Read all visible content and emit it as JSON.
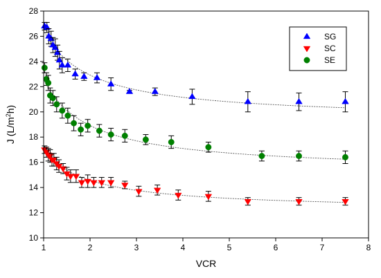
{
  "chart_data": {
    "type": "scatter",
    "xlabel": "VCR",
    "ylabel_parts": [
      "J (L/m",
      "2",
      "h)"
    ],
    "xlim": [
      1,
      8
    ],
    "ylim": [
      10,
      28
    ],
    "x_ticks": [
      1,
      2,
      3,
      4,
      5,
      6,
      7,
      8
    ],
    "y_ticks": [
      10,
      12,
      14,
      16,
      18,
      20,
      22,
      24,
      26,
      28
    ],
    "legend_position": "top-right",
    "grid": false,
    "series": [
      {
        "name": "SG",
        "marker": "triangle-up",
        "color": "#0000ff",
        "fit_curve": true,
        "points": [
          {
            "x": 1.02,
            "y": 26.8,
            "err": 0.3
          },
          {
            "x": 1.07,
            "y": 26.7,
            "err": 0.4
          },
          {
            "x": 1.11,
            "y": 26.0,
            "err": 0.6
          },
          {
            "x": 1.16,
            "y": 25.8,
            "err": 0.6
          },
          {
            "x": 1.2,
            "y": 25.3,
            "err": 0.6
          },
          {
            "x": 1.25,
            "y": 25.1,
            "err": 0.7
          },
          {
            "x": 1.3,
            "y": 24.7,
            "err": 0.6
          },
          {
            "x": 1.34,
            "y": 24.1,
            "err": 0.7
          },
          {
            "x": 1.4,
            "y": 23.7,
            "err": 0.6
          },
          {
            "x": 1.52,
            "y": 23.7,
            "err": 0.5
          },
          {
            "x": 1.68,
            "y": 23.0,
            "err": 0.4
          },
          {
            "x": 1.87,
            "y": 22.8,
            "err": 0.3
          },
          {
            "x": 2.15,
            "y": 22.7,
            "err": 0.4
          },
          {
            "x": 2.45,
            "y": 22.2,
            "err": 0.5
          },
          {
            "x": 2.85,
            "y": 21.6,
            "err": 0.1
          },
          {
            "x": 3.4,
            "y": 21.6,
            "err": 0.3
          },
          {
            "x": 4.2,
            "y": 21.2,
            "err": 0.6
          },
          {
            "x": 5.4,
            "y": 20.8,
            "err": 0.8
          },
          {
            "x": 6.5,
            "y": 20.8,
            "err": 0.7
          },
          {
            "x": 7.5,
            "y": 20.8,
            "err": 0.8
          }
        ]
      },
      {
        "name": "SC",
        "marker": "triangle-down",
        "color": "#ff0000",
        "fit_curve": true,
        "points": [
          {
            "x": 1.02,
            "y": 17.0,
            "err": 0.3
          },
          {
            "x": 1.06,
            "y": 16.8,
            "err": 0.4
          },
          {
            "x": 1.1,
            "y": 16.6,
            "err": 0.5
          },
          {
            "x": 1.14,
            "y": 16.5,
            "err": 0.5
          },
          {
            "x": 1.18,
            "y": 16.2,
            "err": 0.5
          },
          {
            "x": 1.22,
            "y": 16.2,
            "err": 0.5
          },
          {
            "x": 1.28,
            "y": 15.9,
            "err": 0.5
          },
          {
            "x": 1.33,
            "y": 15.7,
            "err": 0.5
          },
          {
            "x": 1.42,
            "y": 15.5,
            "err": 0.4
          },
          {
            "x": 1.5,
            "y": 15.1,
            "err": 0.5
          },
          {
            "x": 1.58,
            "y": 14.9,
            "err": 0.5
          },
          {
            "x": 1.7,
            "y": 14.9,
            "err": 0.5
          },
          {
            "x": 1.82,
            "y": 14.4,
            "err": 0.4
          },
          {
            "x": 1.95,
            "y": 14.5,
            "err": 0.5
          },
          {
            "x": 2.08,
            "y": 14.4,
            "err": 0.4
          },
          {
            "x": 2.25,
            "y": 14.4,
            "err": 0.4
          },
          {
            "x": 2.45,
            "y": 14.4,
            "err": 0.4
          },
          {
            "x": 2.75,
            "y": 14.2,
            "err": 0.3
          },
          {
            "x": 3.05,
            "y": 13.7,
            "err": 0.4
          },
          {
            "x": 3.45,
            "y": 13.8,
            "err": 0.4
          },
          {
            "x": 3.9,
            "y": 13.4,
            "err": 0.4
          },
          {
            "x": 4.55,
            "y": 13.3,
            "err": 0.4
          },
          {
            "x": 5.4,
            "y": 12.9,
            "err": 0.3
          },
          {
            "x": 6.5,
            "y": 12.9,
            "err": 0.3
          },
          {
            "x": 7.5,
            "y": 12.9,
            "err": 0.3
          }
        ]
      },
      {
        "name": "SE",
        "marker": "circle",
        "color": "#008000",
        "fit_curve": true,
        "points": [
          {
            "x": 1.02,
            "y": 23.5,
            "err": 0.4
          },
          {
            "x": 1.06,
            "y": 22.6,
            "err": 0.5
          },
          {
            "x": 1.1,
            "y": 22.3,
            "err": 0.6
          },
          {
            "x": 1.14,
            "y": 21.3,
            "err": 0.6
          },
          {
            "x": 1.2,
            "y": 21.1,
            "err": 0.6
          },
          {
            "x": 1.28,
            "y": 20.6,
            "err": 0.6
          },
          {
            "x": 1.4,
            "y": 20.1,
            "err": 0.6
          },
          {
            "x": 1.52,
            "y": 19.7,
            "err": 0.6
          },
          {
            "x": 1.65,
            "y": 19.1,
            "err": 0.6
          },
          {
            "x": 1.8,
            "y": 18.6,
            "err": 0.5
          },
          {
            "x": 1.95,
            "y": 18.9,
            "err": 0.5
          },
          {
            "x": 2.2,
            "y": 18.5,
            "err": 0.5
          },
          {
            "x": 2.45,
            "y": 18.2,
            "err": 0.5
          },
          {
            "x": 2.75,
            "y": 18.1,
            "err": 0.5
          },
          {
            "x": 3.2,
            "y": 17.8,
            "err": 0.4
          },
          {
            "x": 3.75,
            "y": 17.6,
            "err": 0.5
          },
          {
            "x": 4.55,
            "y": 17.2,
            "err": 0.4
          },
          {
            "x": 5.7,
            "y": 16.5,
            "err": 0.4
          },
          {
            "x": 6.5,
            "y": 16.5,
            "err": 0.4
          },
          {
            "x": 7.5,
            "y": 16.4,
            "err": 0.5
          }
        ]
      }
    ]
  }
}
